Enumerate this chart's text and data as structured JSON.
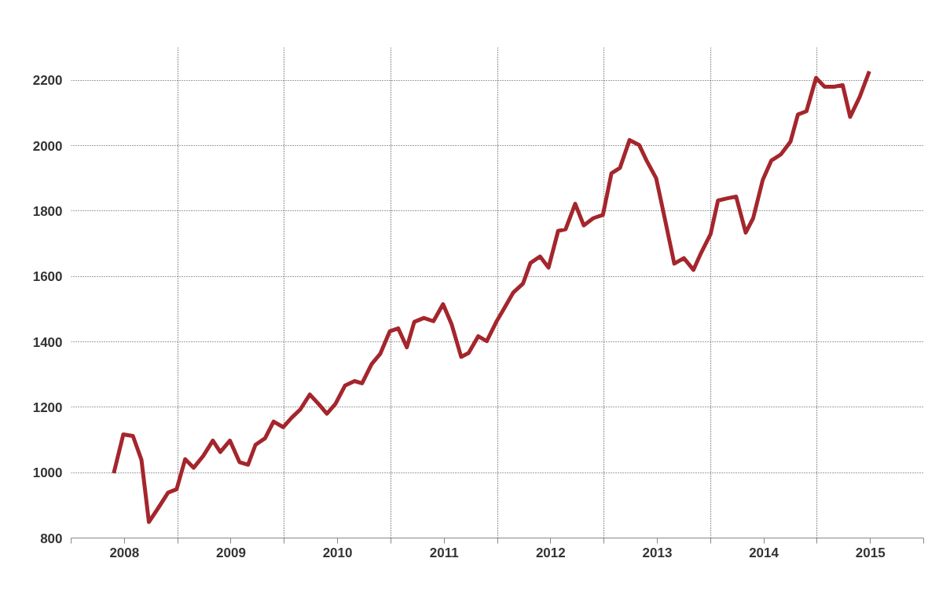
{
  "chart_data": {
    "type": "line",
    "grid": true,
    "line_style": "solid",
    "marker": "none",
    "xlim": [
      2008,
      2016
    ],
    "ylim": [
      800,
      2300
    ],
    "xticks": [
      {
        "value": 2008,
        "label": null
      },
      {
        "value": 2008.5,
        "label": "2008"
      },
      {
        "value": 2009,
        "label": null
      },
      {
        "value": 2009.5,
        "label": "2009"
      },
      {
        "value": 2010,
        "label": null
      },
      {
        "value": 2010.5,
        "label": "2010"
      },
      {
        "value": 2011,
        "label": null
      },
      {
        "value": 2011.5,
        "label": "2011"
      },
      {
        "value": 2012,
        "label": null
      },
      {
        "value": 2012.5,
        "label": "2012"
      },
      {
        "value": 2013,
        "label": null
      },
      {
        "value": 2013.5,
        "label": "2013"
      },
      {
        "value": 2014,
        "label": null
      },
      {
        "value": 2014.5,
        "label": "2014"
      },
      {
        "value": 2015,
        "label": null
      },
      {
        "value": 2015.5,
        "label": "2015"
      },
      {
        "value": 2016,
        "label": null
      }
    ],
    "yticks": [
      800,
      1000,
      1200,
      1400,
      1600,
      1800,
      2000,
      2200
    ],
    "x": [
      2008.4,
      2008.49,
      2008.58,
      2008.66,
      2008.73,
      2008.82,
      2008.91,
      2008.99,
      2009.07,
      2009.15,
      2009.24,
      2009.33,
      2009.4,
      2009.49,
      2009.58,
      2009.66,
      2009.73,
      2009.82,
      2009.9,
      2009.99,
      2010.07,
      2010.15,
      2010.24,
      2010.33,
      2010.4,
      2010.48,
      2010.57,
      2010.66,
      2010.73,
      2010.82,
      2010.9,
      2010.99,
      2011.07,
      2011.15,
      2011.22,
      2011.31,
      2011.4,
      2011.49,
      2011.57,
      2011.66,
      2011.73,
      2011.82,
      2011.9,
      2011.99,
      2012.06,
      2012.15,
      2012.24,
      2012.31,
      2012.4,
      2012.48,
      2012.57,
      2012.64,
      2012.73,
      2012.81,
      2012.9,
      2012.99,
      2013.07,
      2013.15,
      2013.24,
      2013.33,
      2013.4,
      2013.49,
      2013.57,
      2013.66,
      2013.75,
      2013.84,
      2013.91,
      2014.0,
      2014.07,
      2014.16,
      2014.24,
      2014.33,
      2014.4,
      2014.49,
      2014.57,
      2014.66,
      2014.75,
      2014.82,
      2014.9,
      2014.99,
      2015.07,
      2015.16,
      2015.24,
      2015.31,
      2015.4,
      2015.49
    ],
    "series": [
      {
        "color": "#a4262c",
        "values": [
          998,
          1117,
          1112,
          1039,
          849,
          893,
          939,
          949,
          1041,
          1015,
          1051,
          1098,
          1063,
          1098,
          1032,
          1024,
          1085,
          1105,
          1156,
          1139,
          1168,
          1193,
          1239,
          1207,
          1180,
          1210,
          1266,
          1280,
          1273,
          1332,
          1363,
          1432,
          1441,
          1383,
          1461,
          1473,
          1463,
          1515,
          1454,
          1354,
          1366,
          1417,
          1402,
          1461,
          1500,
          1551,
          1578,
          1641,
          1661,
          1627,
          1739,
          1744,
          1822,
          1756,
          1778,
          1788,
          1915,
          1932,
          2017,
          2002,
          1954,
          1900,
          1778,
          1639,
          1656,
          1620,
          1671,
          1729,
          1832,
          1839,
          1844,
          1734,
          1778,
          1895,
          1954,
          1973,
          2012,
          2095,
          2105,
          2207,
          2180,
          2180,
          2185,
          2088,
          2149,
          2227
        ]
      }
    ]
  }
}
